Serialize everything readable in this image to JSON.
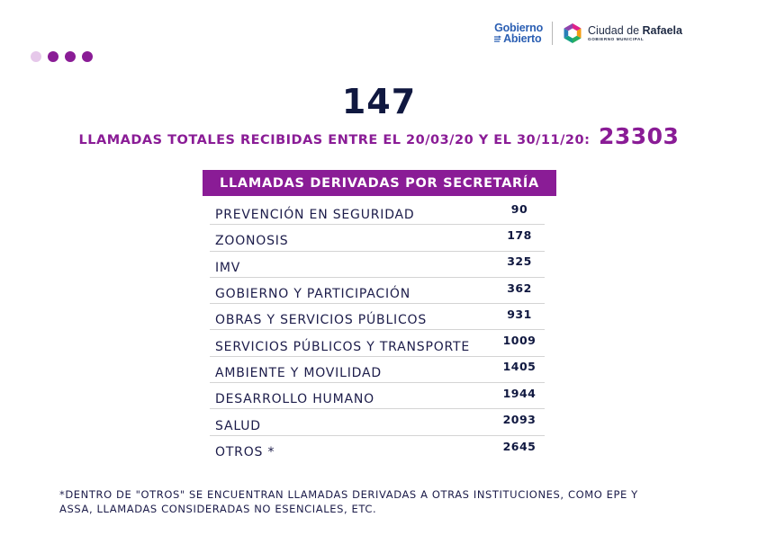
{
  "header": {
    "gobierno_line1": "Gobierno",
    "gobierno_line2": "Abierto",
    "ciudad_prefix": "Ciudad de",
    "ciudad_name": "Rafaela",
    "ciudad_sub": "GOBIERNO MUNICIPAL",
    "colors": {
      "brand_purple": "#8a1c96",
      "brand_blue": "#2b5fb3",
      "dark_navy": "#101840"
    }
  },
  "main": {
    "big_number": "147",
    "total_label": "LLAMADAS TOTALES RECIBIDAS ENTRE EL 20/03/20 Y EL 30/11/20:",
    "total_value": "23303"
  },
  "table": {
    "header": "LLAMADAS DERIVADAS POR SECRETARÍA",
    "rows": [
      {
        "name": "PREVENCIÓN EN SEGURIDAD",
        "value": "90"
      },
      {
        "name": "ZOONOSIS",
        "value": "178"
      },
      {
        "name": "IMV",
        "value": "325"
      },
      {
        "name": "GOBIERNO Y PARTICIPACIÓN",
        "value": "362"
      },
      {
        "name": "OBRAS Y SERVICIOS PÚBLICOS",
        "value": "931"
      },
      {
        "name": "SERVICIOS PÚBLICOS Y TRANSPORTE",
        "value": "1009"
      },
      {
        "name": "AMBIENTE Y MOVILIDAD",
        "value": "1405"
      },
      {
        "name": "DESARROLLO HUMANO",
        "value": "1944"
      },
      {
        "name": "SALUD",
        "value": "2093"
      },
      {
        "name": "OTROS *",
        "value": "2645"
      }
    ]
  },
  "footnote": {
    "line1": "*DENTRO DE \"OTROS\" SE ENCUENTRAN LLAMADAS DERIVADAS A OTRAS INSTITUCIONES, COMO EPE Y",
    "line2": "ASSA, LLAMADAS CONSIDERADAS NO ESENCIALES, ETC."
  }
}
